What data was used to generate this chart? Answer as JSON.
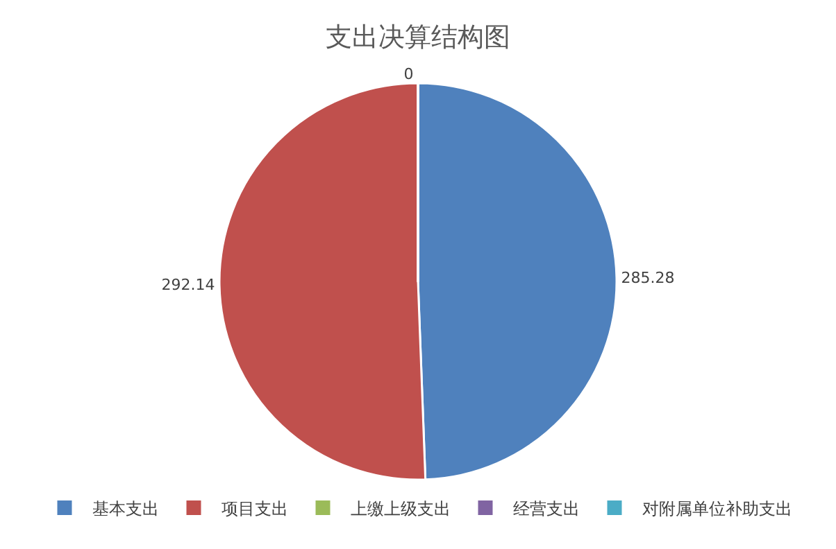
{
  "chart_data": {
    "type": "pie",
    "title": "支出决算结构图",
    "categories": [
      "基本支出",
      "项目支出",
      "上缴上级支出",
      "经营支出",
      "对附属单位补助支出"
    ],
    "values": [
      285.28,
      292.14,
      0,
      0,
      0
    ],
    "value_labels": [
      "285.28",
      "292.14",
      "0",
      null,
      null
    ],
    "colors": [
      "#4f81bd",
      "#c0504d",
      "#9bbb59",
      "#8064a2",
      "#4bacc6"
    ],
    "legend": "bottom"
  }
}
